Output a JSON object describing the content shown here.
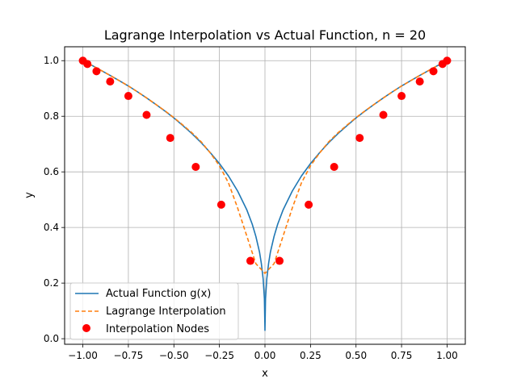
{
  "chart_data": {
    "type": "line",
    "title": "Lagrange Interpolation vs Actual Function, n = 20",
    "xlabel": "x",
    "ylabel": "y",
    "xlim": [
      -1.1,
      1.1
    ],
    "ylim": [
      -0.02,
      1.05
    ],
    "xticks": [
      -1.0,
      -0.75,
      -0.5,
      -0.25,
      0.0,
      0.25,
      0.5,
      0.75,
      1.0
    ],
    "xtick_labels": [
      "−1.00",
      "−0.75",
      "−0.50",
      "−0.25",
      "0.00",
      "0.25",
      "0.50",
      "0.75",
      "1.00"
    ],
    "yticks": [
      0.0,
      0.2,
      0.4,
      0.6,
      0.8,
      1.0
    ],
    "ytick_labels": [
      "0.0",
      "0.2",
      "0.4",
      "0.6",
      "0.8",
      "1.0"
    ],
    "grid": true,
    "legend_position": "lower-left",
    "series": [
      {
        "name": "Actual Function g(x)",
        "style": "solid",
        "color": "#1f77b4",
        "x": [
          -1.0,
          -0.95,
          -0.9,
          -0.85,
          -0.8,
          -0.75,
          -0.7,
          -0.65,
          -0.6,
          -0.55,
          -0.5,
          -0.45,
          -0.4,
          -0.35,
          -0.3,
          -0.25,
          -0.2,
          -0.15,
          -0.1,
          -0.07,
          -0.05,
          -0.03,
          -0.02,
          -0.01,
          -0.003,
          0.0,
          0.003,
          0.01,
          0.02,
          0.03,
          0.05,
          0.07,
          0.1,
          0.15,
          0.2,
          0.25,
          0.3,
          0.35,
          0.4,
          0.45,
          0.5,
          0.55,
          0.6,
          0.65,
          0.7,
          0.75,
          0.8,
          0.85,
          0.9,
          0.95,
          1.0
        ],
        "y": [
          1.0,
          0.983,
          0.965,
          0.947,
          0.928,
          0.909,
          0.888,
          0.866,
          0.843,
          0.819,
          0.794,
          0.766,
          0.737,
          0.705,
          0.669,
          0.63,
          0.585,
          0.531,
          0.464,
          0.412,
          0.368,
          0.312,
          0.271,
          0.215,
          0.144,
          0.03,
          0.144,
          0.215,
          0.271,
          0.312,
          0.368,
          0.412,
          0.464,
          0.531,
          0.585,
          0.63,
          0.669,
          0.705,
          0.737,
          0.766,
          0.794,
          0.819,
          0.843,
          0.866,
          0.888,
          0.909,
          0.928,
          0.947,
          0.965,
          0.983,
          1.0
        ]
      },
      {
        "name": "Lagrange Interpolation",
        "style": "dashed",
        "color": "#ff7f0e",
        "x": [
          -1.0,
          -0.95,
          -0.9,
          -0.85,
          -0.8,
          -0.75,
          -0.7,
          -0.65,
          -0.6,
          -0.55,
          -0.5,
          -0.45,
          -0.4,
          -0.35,
          -0.3,
          -0.25,
          -0.2,
          -0.15,
          -0.1,
          -0.05,
          0.0,
          0.05,
          0.1,
          0.15,
          0.2,
          0.25,
          0.3,
          0.35,
          0.4,
          0.45,
          0.5,
          0.55,
          0.6,
          0.65,
          0.7,
          0.75,
          0.8,
          0.85,
          0.9,
          0.95,
          1.0
        ],
        "y": [
          1.0,
          0.983,
          0.965,
          0.947,
          0.928,
          0.909,
          0.888,
          0.866,
          0.843,
          0.82,
          0.795,
          0.768,
          0.74,
          0.708,
          0.668,
          0.622,
          0.56,
          0.47,
          0.37,
          0.27,
          0.235,
          0.27,
          0.37,
          0.47,
          0.56,
          0.622,
          0.668,
          0.708,
          0.74,
          0.768,
          0.795,
          0.82,
          0.843,
          0.866,
          0.888,
          0.909,
          0.928,
          0.947,
          0.965,
          0.983,
          1.0
        ]
      }
    ],
    "nodes": {
      "name": "Interpolation Nodes",
      "color": "#ff0000",
      "x": [
        -1.0,
        -0.975,
        -0.925,
        -0.85,
        -0.75,
        -0.65,
        -0.52,
        -0.38,
        -0.24,
        -0.08,
        0.08,
        0.24,
        0.38,
        0.52,
        0.65,
        0.75,
        0.85,
        0.925,
        0.975,
        1.0
      ],
      "y": [
        1.0,
        0.988,
        0.962,
        0.925,
        0.873,
        0.805,
        0.722,
        0.618,
        0.482,
        0.28,
        0.28,
        0.482,
        0.618,
        0.722,
        0.805,
        0.873,
        0.925,
        0.962,
        0.988,
        1.0
      ]
    }
  }
}
